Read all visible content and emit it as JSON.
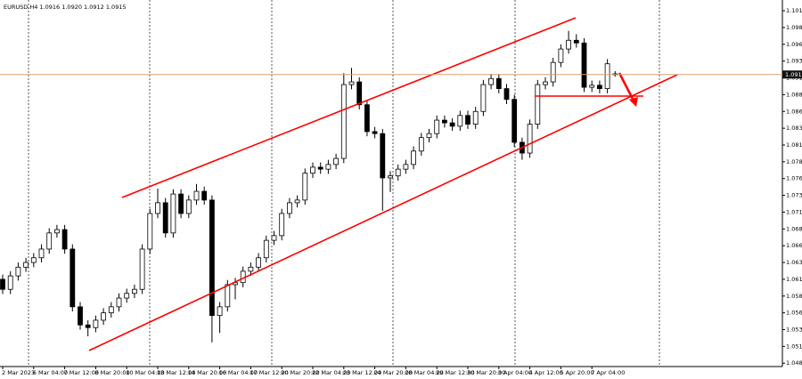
{
  "chart_data": {
    "type": "candlestick",
    "header": "EURUSD,H4 1.0916 1.0920 1.0912 1.0915",
    "categories": [
      "2 Mar 2023",
      null,
      null,
      null,
      "6 Mar 04:00",
      null,
      null,
      null,
      "7 Mar 12:00",
      null,
      null,
      null,
      "8 Mar 20:00",
      null,
      null,
      null,
      "10 Mar 04:00",
      null,
      null,
      null,
      "13 Mar 12:00",
      null,
      null,
      null,
      "14 Mar 20:00",
      null,
      null,
      null,
      "16 Mar 04:00",
      null,
      null,
      null,
      "17 Mar 12:00",
      null,
      null,
      null,
      "20 Mar 20:00",
      null,
      null,
      null,
      "22 Mar 04:00",
      null,
      null,
      null,
      "23 Mar 12:00",
      null,
      null,
      null,
      "24 Mar 20:00",
      null,
      null,
      null,
      "28 Mar 04:00",
      null,
      null,
      null,
      "29 Mar 12:00",
      null,
      null,
      null,
      "30 Mar 20:00",
      null,
      null,
      null,
      "3 Apr 04:00",
      null,
      null,
      null,
      "4 Apr 12:00",
      null,
      null,
      null,
      "5 Apr 20:00",
      null,
      null,
      null,
      "7 Apr 04:00",
      null,
      null,
      null
    ],
    "open": [
      1.061,
      1.0595,
      1.0615,
      1.0628,
      1.0635,
      1.0642,
      1.0655,
      1.0679,
      1.0684,
      1.0655,
      1.0569,
      1.0542,
      1.0538,
      1.0549,
      1.056,
      1.0569,
      1.0582,
      1.0589,
      1.0595,
      1.0655,
      1.0708,
      1.0724,
      1.0679,
      1.0737,
      1.0708,
      1.0728,
      1.0741,
      1.0728,
      1.0556,
      1.0569,
      1.0602,
      1.0605,
      1.0622,
      1.0628,
      1.0642,
      1.0668,
      1.0675,
      1.0708,
      1.0724,
      1.0728,
      1.0768,
      1.0777,
      1.0774,
      1.0781,
      1.079,
      1.09,
      1.0904,
      1.087,
      1.083,
      1.0827,
      1.0761,
      1.0764,
      1.0774,
      1.0781,
      1.0801,
      1.0821,
      1.0827,
      1.0847,
      1.0843,
      1.0838,
      1.0854,
      1.0841,
      1.086,
      1.09,
      1.0909,
      1.0894,
      1.0878,
      1.0814,
      1.0798,
      1.0841,
      1.09,
      1.0904,
      1.0933,
      1.0953,
      1.0966,
      1.0962,
      1.0896,
      1.0899,
      1.0894,
      1.0916
    ],
    "high": [
      1.0617,
      1.0622,
      1.0635,
      1.0642,
      1.0649,
      1.0662,
      1.0686,
      1.0691,
      1.0691,
      1.0662,
      1.0576,
      1.0549,
      1.0556,
      1.0567,
      1.0576,
      1.0589,
      1.0596,
      1.0602,
      1.0662,
      1.0715,
      1.0745,
      1.0731,
      1.0744,
      1.0744,
      1.0735,
      1.0752,
      1.0748,
      1.0735,
      1.0576,
      1.0609,
      1.0612,
      1.0629,
      1.0635,
      1.0649,
      1.0675,
      1.0682,
      1.0715,
      1.0731,
      1.0735,
      1.0775,
      1.0784,
      1.0784,
      1.0788,
      1.0797,
      1.0917,
      1.0925,
      1.0911,
      1.0877,
      1.0837,
      1.0834,
      1.0771,
      1.0781,
      1.0788,
      1.0808,
      1.0828,
      1.0834,
      1.0854,
      1.0854,
      1.085,
      1.0861,
      1.0861,
      1.0867,
      1.0907,
      1.0916,
      1.0916,
      1.0901,
      1.0885,
      1.0821,
      1.0848,
      1.0907,
      1.0911,
      1.094,
      1.096,
      1.098,
      1.0975,
      1.0969,
      1.0906,
      1.0906,
      1.0938,
      1.092
    ],
    "low": [
      1.0588,
      1.0588,
      1.0608,
      1.0621,
      1.0628,
      1.0635,
      1.0648,
      1.0672,
      1.0648,
      1.0562,
      1.0535,
      1.0525,
      1.0531,
      1.0542,
      1.0553,
      1.0562,
      1.0575,
      1.0582,
      1.0588,
      1.0648,
      1.0701,
      1.0672,
      1.0672,
      1.0701,
      1.0701,
      1.0721,
      1.0721,
      1.0516,
      1.053,
      1.0562,
      1.058,
      1.0598,
      1.0615,
      1.0621,
      1.0635,
      1.0661,
      1.0668,
      1.0701,
      1.0717,
      1.0721,
      1.0761,
      1.0767,
      1.0767,
      1.0774,
      1.0783,
      1.0893,
      1.0863,
      1.0823,
      1.082,
      1.0712,
      1.074,
      1.0757,
      1.0767,
      1.0774,
      1.0794,
      1.0814,
      1.082,
      1.0836,
      1.0831,
      1.0831,
      1.0834,
      1.0834,
      1.0853,
      1.0893,
      1.0887,
      1.0871,
      1.0807,
      1.0788,
      1.0791,
      1.0834,
      1.0893,
      1.0897,
      1.0926,
      1.0946,
      1.0955,
      1.0889,
      1.0889,
      1.0887,
      1.0887,
      1.0912
    ],
    "close": [
      1.0595,
      1.0615,
      1.0628,
      1.0635,
      1.0642,
      1.0655,
      1.0679,
      1.0684,
      1.0655,
      1.0569,
      1.0542,
      1.0538,
      1.0549,
      1.056,
      1.0569,
      1.0582,
      1.0589,
      1.0595,
      1.0655,
      1.0708,
      1.0724,
      1.0679,
      1.0737,
      1.0708,
      1.0728,
      1.0741,
      1.0728,
      1.0556,
      1.0569,
      1.0602,
      1.0605,
      1.0622,
      1.0628,
      1.0642,
      1.0668,
      1.0675,
      1.0708,
      1.0724,
      1.0728,
      1.0768,
      1.0777,
      1.0774,
      1.0781,
      1.079,
      1.09,
      1.0904,
      1.087,
      1.083,
      1.0827,
      1.0761,
      1.0764,
      1.0774,
      1.0781,
      1.0801,
      1.0821,
      1.0827,
      1.0847,
      1.0843,
      1.0838,
      1.0854,
      1.0841,
      1.086,
      1.09,
      1.0909,
      1.0894,
      1.0878,
      1.0814,
      1.0798,
      1.0841,
      1.09,
      1.0904,
      1.0933,
      1.0953,
      1.0966,
      1.0962,
      1.0896,
      1.0899,
      1.0894,
      1.0931,
      1.0915
    ],
    "up_color": "#ffffff",
    "down_color": "#000000",
    "current_price": 1.0915,
    "current_price_color": "#d9a070",
    "ylim": [
      1.048,
      1.1026
    ],
    "yticks": [
      {
        "value": 1.101,
        "label": "1.1010"
      },
      1.0985,
      {
        "value": 1.096,
        "label": "1.0960"
      },
      1.0935,
      {
        "value": 1.091,
        "label": "1.0910"
      },
      1.0885,
      {
        "value": 1.086,
        "label": "1.0860"
      },
      1.0835,
      {
        "value": 1.081,
        "label": "1.0810"
      },
      1.0785,
      {
        "value": 1.076,
        "label": "1.0760"
      },
      1.0735,
      {
        "value": 1.071,
        "label": "1.0710"
      },
      1.0685,
      {
        "value": 1.066,
        "label": "1.0660"
      },
      1.0635,
      {
        "value": 1.061,
        "label": "1.0610"
      },
      1.0585,
      {
        "value": 1.056,
        "label": "1.0560"
      },
      1.0535,
      {
        "value": 1.051,
        "label": "1.0510"
      },
      1.0485
    ]
  }
}
